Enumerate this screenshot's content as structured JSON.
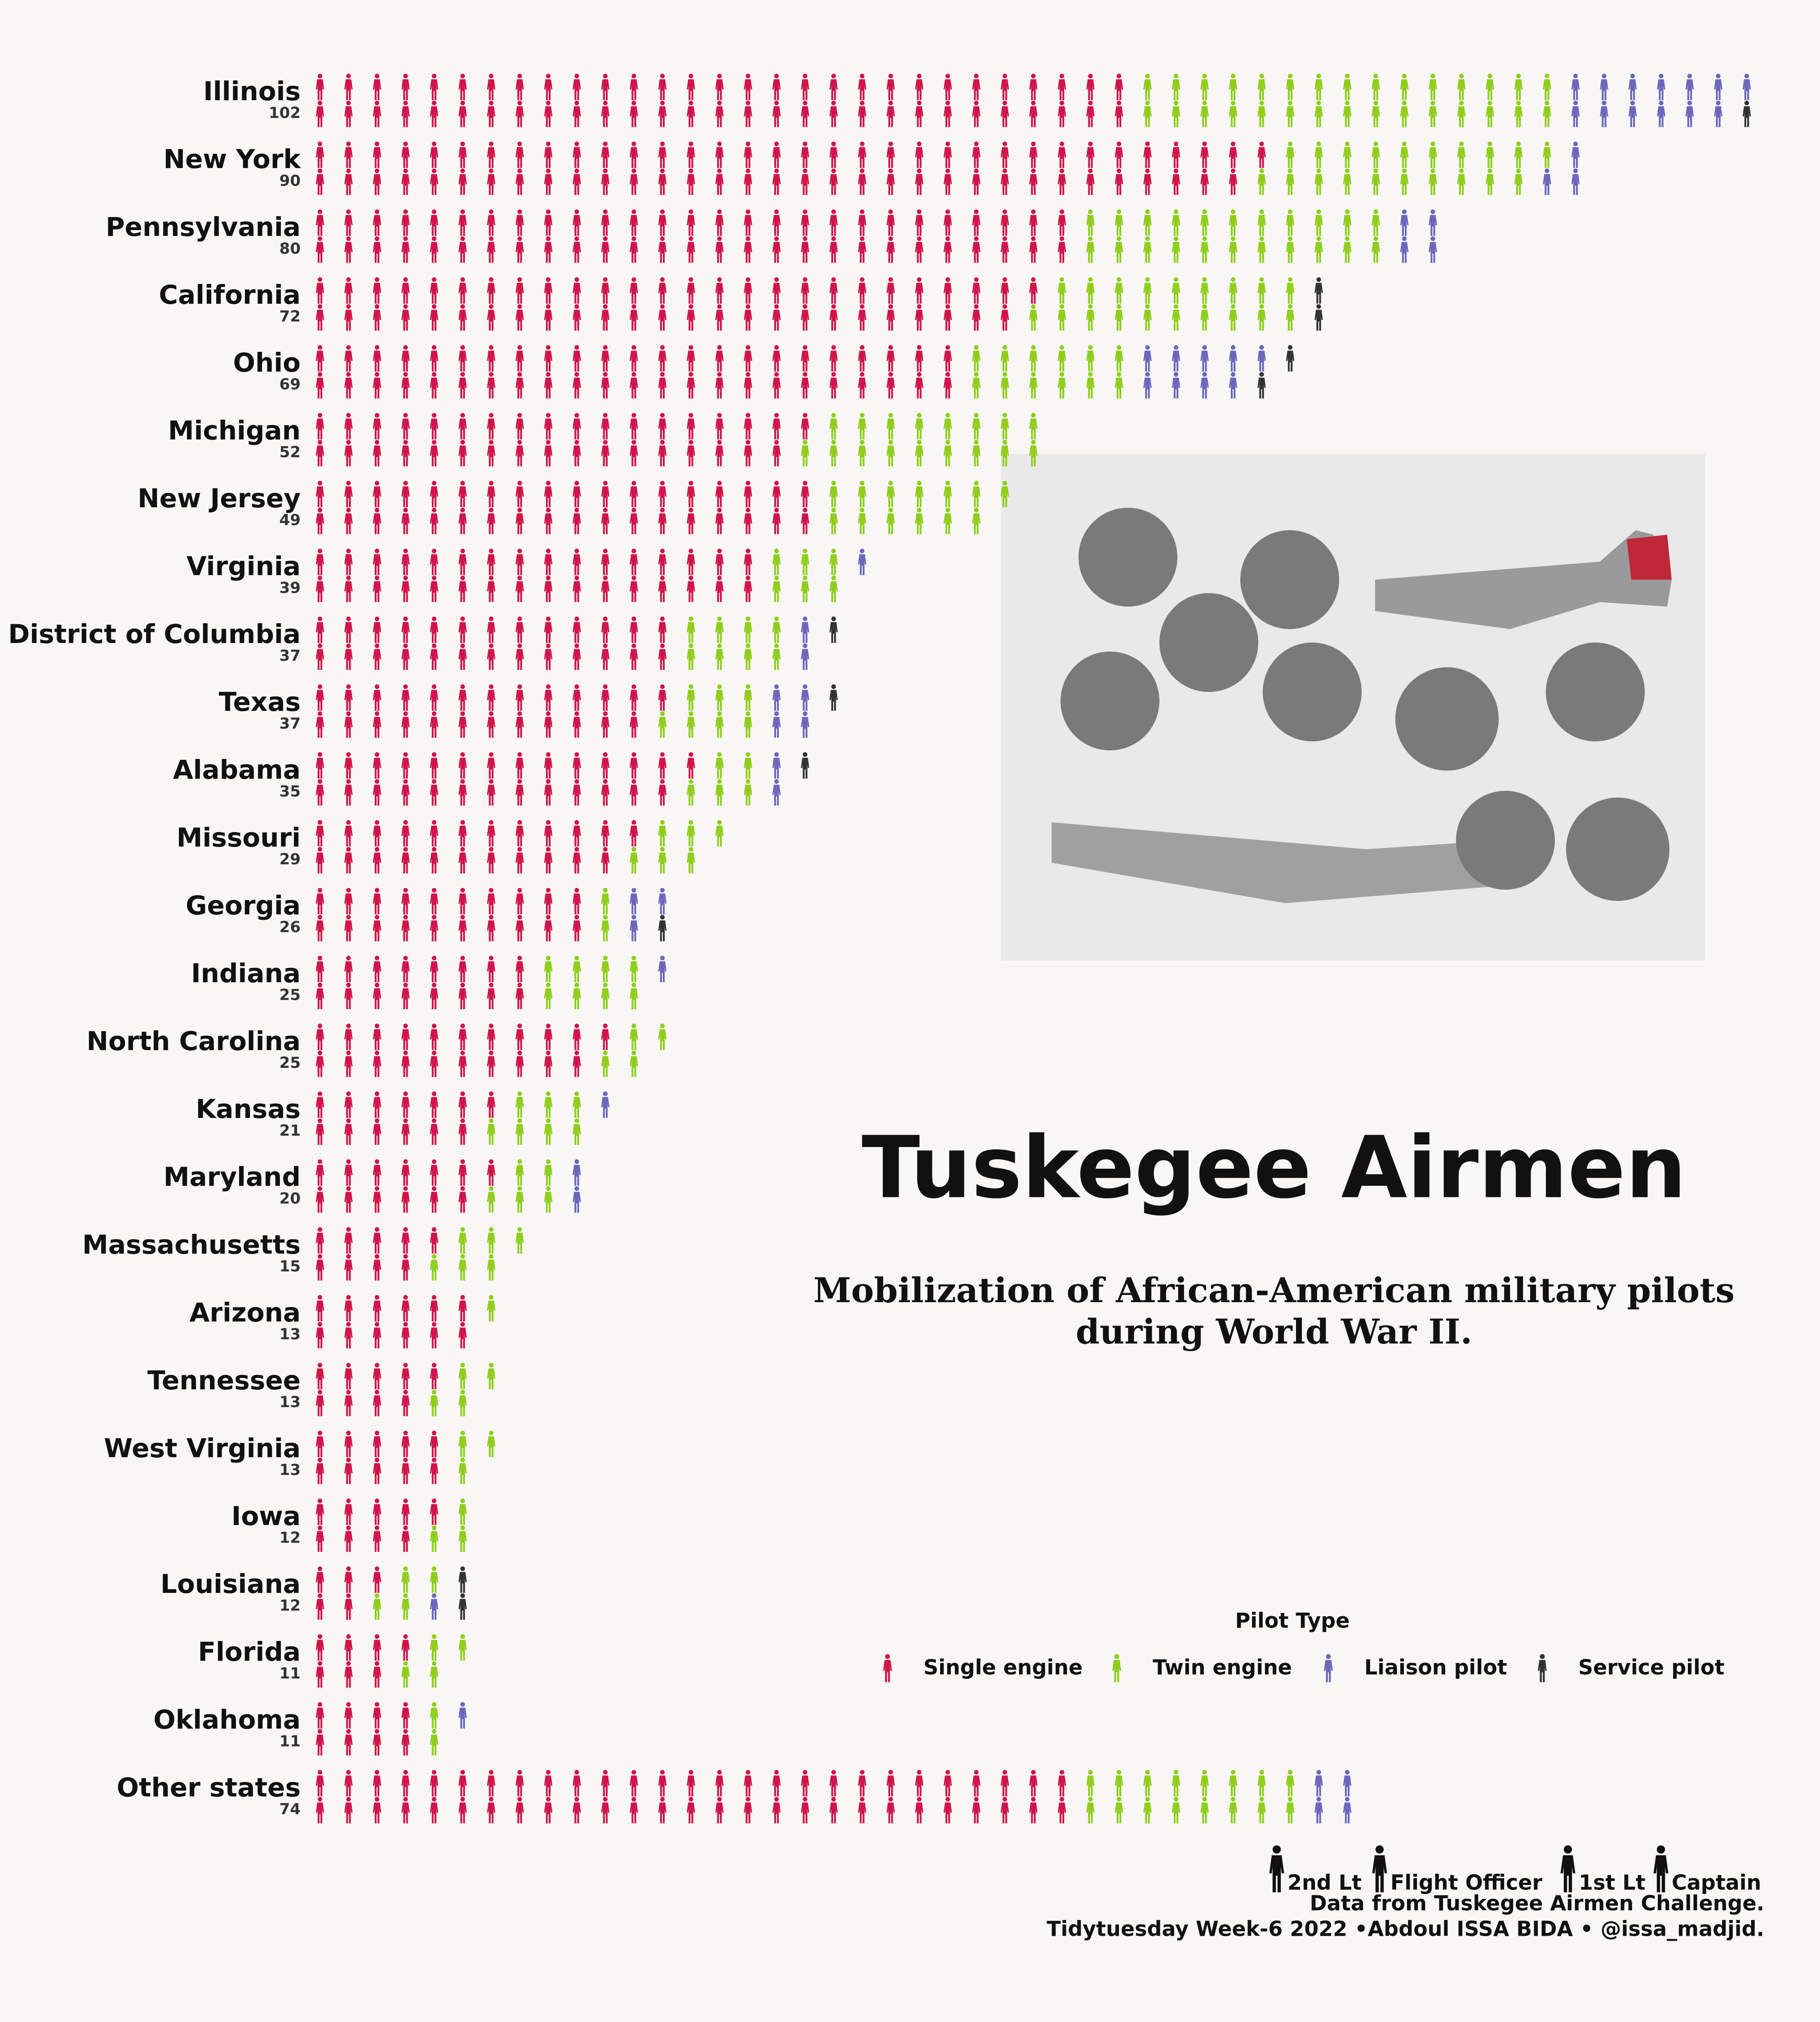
{
  "chart_data": {
    "type": "pictogram",
    "title": "Tuskegee Airmen",
    "subtitle": [
      "Mobilization of African-American military pilots",
      "during World War II."
    ],
    "legend_title": "Pilot Type",
    "categories": [
      "Illinois",
      "New York",
      "Pennsylvania",
      "California",
      "Ohio",
      "Michigan",
      "New Jersey",
      "Virginia",
      "District of Columbia",
      "Texas",
      "Alabama",
      "Missouri",
      "Georgia",
      "Indiana",
      "North Carolina",
      "Kansas",
      "Maryland",
      "Massachusetts",
      "Arizona",
      "Tennessee",
      "West Virginia",
      "Iowa",
      "Louisiana",
      "Florida",
      "Oklahoma",
      "Other states"
    ],
    "totals": [
      102,
      90,
      80,
      72,
      69,
      52,
      49,
      39,
      37,
      37,
      35,
      29,
      26,
      25,
      25,
      21,
      20,
      15,
      13,
      13,
      13,
      12,
      12,
      11,
      11,
      74
    ],
    "series": [
      {
        "name": "Single engine",
        "color": "#d1144a",
        "values": [
          58,
          67,
          54,
          51,
          46,
          35,
          36,
          32,
          26,
          25,
          27,
          23,
          20,
          16,
          21,
          13,
          13,
          9,
          12,
          9,
          10,
          9,
          5,
          7,
          8,
          54
        ]
      },
      {
        "name": "Twin engine",
        "color": "#8fce1c",
        "values": [
          30,
          20,
          22,
          19,
          12,
          17,
          13,
          6,
          8,
          7,
          5,
          6,
          2,
          8,
          4,
          7,
          5,
          6,
          1,
          4,
          3,
          3,
          4,
          4,
          2,
          16
        ]
      },
      {
        "name": "Liaison pilot",
        "color": "#6c67bd",
        "values": [
          13,
          3,
          4,
          0,
          9,
          0,
          0,
          1,
          2,
          4,
          2,
          0,
          3,
          1,
          0,
          1,
          2,
          0,
          0,
          0,
          0,
          0,
          1,
          0,
          1,
          4
        ]
      },
      {
        "name": "Service pilot",
        "color": "#333333",
        "values": [
          1,
          0,
          0,
          2,
          2,
          0,
          0,
          0,
          1,
          1,
          1,
          0,
          1,
          0,
          0,
          0,
          0,
          0,
          0,
          0,
          0,
          0,
          2,
          0,
          0,
          0
        ]
      }
    ],
    "rank_labels": [
      "2nd Lt",
      "Flight Officer",
      "1st Lt",
      "Captain"
    ],
    "caption": [
      "Data from Tuskegee Airmen Challenge.",
      "Tidytuesday Week-6 2022 •Abdoul ISSA BIDA • @issa_madjid."
    ]
  }
}
